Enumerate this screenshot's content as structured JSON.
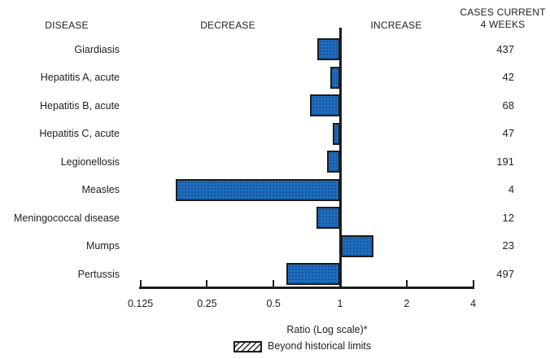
{
  "header": {
    "disease": "DISEASE",
    "decrease": "DECREASE",
    "increase": "INCREASE",
    "cases_current": "CASES CURRENT\n4 WEEKS"
  },
  "chart_data": {
    "type": "bar",
    "orientation": "horizontal",
    "x_scale": "log2",
    "baseline_value": 1,
    "title": "",
    "xlabel": "Ratio (Log scale)*",
    "categories": [
      "Giardiasis",
      "Hepatitis A, acute",
      "Hepatitis B, acute",
      "Hepatitis C, acute",
      "Legionellosis",
      "Measles",
      "Meningococcal disease",
      "Mumps",
      "Pertussis"
    ],
    "series": [
      {
        "name": "Ratio (Log scale)*",
        "values": [
          0.79,
          0.9,
          0.73,
          0.93,
          0.87,
          0.18,
          0.78,
          1.41,
          0.57
        ]
      }
    ],
    "cases_current_4_weeks": [
      437,
      42,
      68,
      47,
      191,
      4,
      12,
      23,
      497
    ],
    "beyond_historical_limits": [
      false,
      false,
      false,
      false,
      false,
      false,
      false,
      false,
      false
    ],
    "x_ticks": [
      0.125,
      0.25,
      0.5,
      1,
      2,
      4
    ],
    "x_tick_labels": [
      "0.125",
      "0.25",
      "0.5",
      "1",
      "2",
      "4"
    ],
    "xlim": [
      0.125,
      4
    ],
    "grid": false,
    "legend_position": "bottom",
    "legend": [
      {
        "label": "Beyond historical limits",
        "style": "hatched"
      }
    ]
  },
  "colors": {
    "bar_fill": "#1e6cbe",
    "bar_border": "#1b1b1b",
    "axis_line": "#1b1b1b",
    "text": "#222222",
    "background": "#ffffff"
  }
}
